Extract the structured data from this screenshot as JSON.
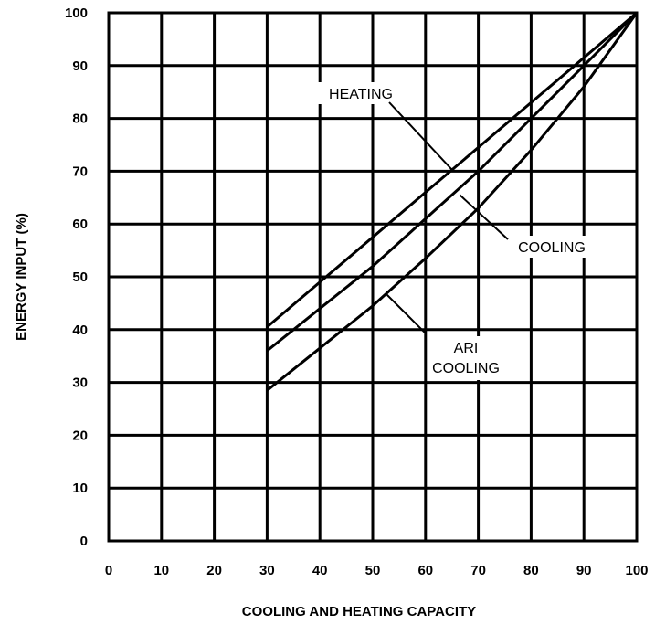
{
  "chart_data": {
    "type": "line",
    "xlabel": "COOLING AND HEATING CAPACITY",
    "ylabel": "ENERGY INPUT (%)",
    "xlim": [
      0,
      100
    ],
    "ylim": [
      0,
      100
    ],
    "xticks": [
      "0",
      "10",
      "20",
      "30",
      "40",
      "50",
      "60",
      "70",
      "80",
      "90",
      "100"
    ],
    "yticks": [
      "0",
      "10",
      "20",
      "30",
      "40",
      "50",
      "60",
      "70",
      "80",
      "90",
      "100"
    ],
    "grid": true,
    "series": [
      {
        "name": "HEATING",
        "x": [
          30,
          40,
          50,
          60,
          70,
          80,
          90,
          100
        ],
        "y": [
          40.5,
          49,
          57.5,
          66,
          74.5,
          83,
          91.5,
          100
        ]
      },
      {
        "name": "COOLING",
        "x": [
          30,
          40,
          50,
          60,
          70,
          80,
          90,
          100
        ],
        "y": [
          36,
          44,
          52,
          61,
          70,
          80,
          90,
          100
        ]
      },
      {
        "name": "ARI COOLING",
        "x": [
          30,
          40,
          50,
          60,
          70,
          80,
          90,
          100
        ],
        "y": [
          28.5,
          36.5,
          44.5,
          53.5,
          63,
          74,
          86,
          100
        ]
      }
    ],
    "annotations": [
      {
        "text": "HEATING",
        "target_series": "HEATING"
      },
      {
        "text": "COOLING",
        "target_series": "COOLING"
      },
      {
        "text": "ARI",
        "target_series": "ARI COOLING"
      },
      {
        "text": "COOLING",
        "target_series": "ARI COOLING"
      }
    ]
  }
}
